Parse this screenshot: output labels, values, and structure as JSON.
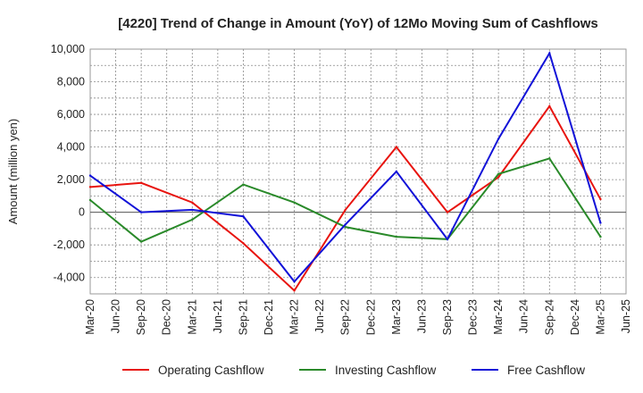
{
  "chart_data": {
    "type": "line",
    "title": "[4220]  Trend of Change in Amount (YoY) of 12Mo Moving Sum of Cashflows",
    "xlabel": "",
    "ylabel": "Amount (million yen)",
    "ylim": [
      -5000,
      10000
    ],
    "yticks": [
      10000,
      8000,
      6000,
      4000,
      2000,
      0,
      -2000,
      -4000
    ],
    "ytick_labels": [
      "10,000",
      "8,000",
      "6,000",
      "4,000",
      "2,000",
      "0",
      "-2,000",
      "-4,000"
    ],
    "categories": [
      "Mar-20",
      "Jun-20",
      "Sep-20",
      "Dec-20",
      "Mar-21",
      "Jun-21",
      "Sep-21",
      "Dec-21",
      "Mar-22",
      "Jun-22",
      "Sep-22",
      "Dec-22",
      "Mar-23",
      "Jun-23",
      "Sep-23",
      "Dec-23",
      "Mar-24",
      "Jun-24",
      "Sep-24",
      "Dec-24",
      "Mar-25",
      "Jun-25"
    ],
    "grid": true,
    "legend_position": "bottom",
    "series": [
      {
        "name": "Operating Cashflow",
        "color": "#e8140f",
        "x": [
          "Mar-20",
          "Sep-20",
          "Mar-21",
          "Sep-21",
          "Mar-22",
          "Sep-22",
          "Mar-23",
          "Sep-23",
          "Mar-24",
          "Sep-24",
          "Mar-25"
        ],
        "values": [
          1550,
          1800,
          600,
          -1900,
          -4800,
          150,
          4000,
          0,
          2150,
          6500,
          800
        ]
      },
      {
        "name": "Investing Cashflow",
        "color": "#2a8a2a",
        "x": [
          "Mar-20",
          "Sep-20",
          "Mar-21",
          "Sep-21",
          "Mar-22",
          "Sep-22",
          "Mar-23",
          "Sep-23",
          "Mar-24",
          "Sep-24",
          "Mar-25"
        ],
        "values": [
          750,
          -1800,
          -450,
          1700,
          600,
          -900,
          -1500,
          -1650,
          2350,
          3300,
          -1500
        ]
      },
      {
        "name": "Free Cashflow",
        "color": "#1212d8",
        "x": [
          "Mar-20",
          "Sep-20",
          "Mar-21",
          "Sep-21",
          "Mar-22",
          "Sep-22",
          "Mar-23",
          "Sep-23",
          "Mar-24",
          "Sep-24",
          "Mar-25"
        ],
        "values": [
          2250,
          0,
          150,
          -250,
          -4250,
          -750,
          2500,
          -1650,
          4500,
          9750,
          -650
        ]
      }
    ]
  }
}
